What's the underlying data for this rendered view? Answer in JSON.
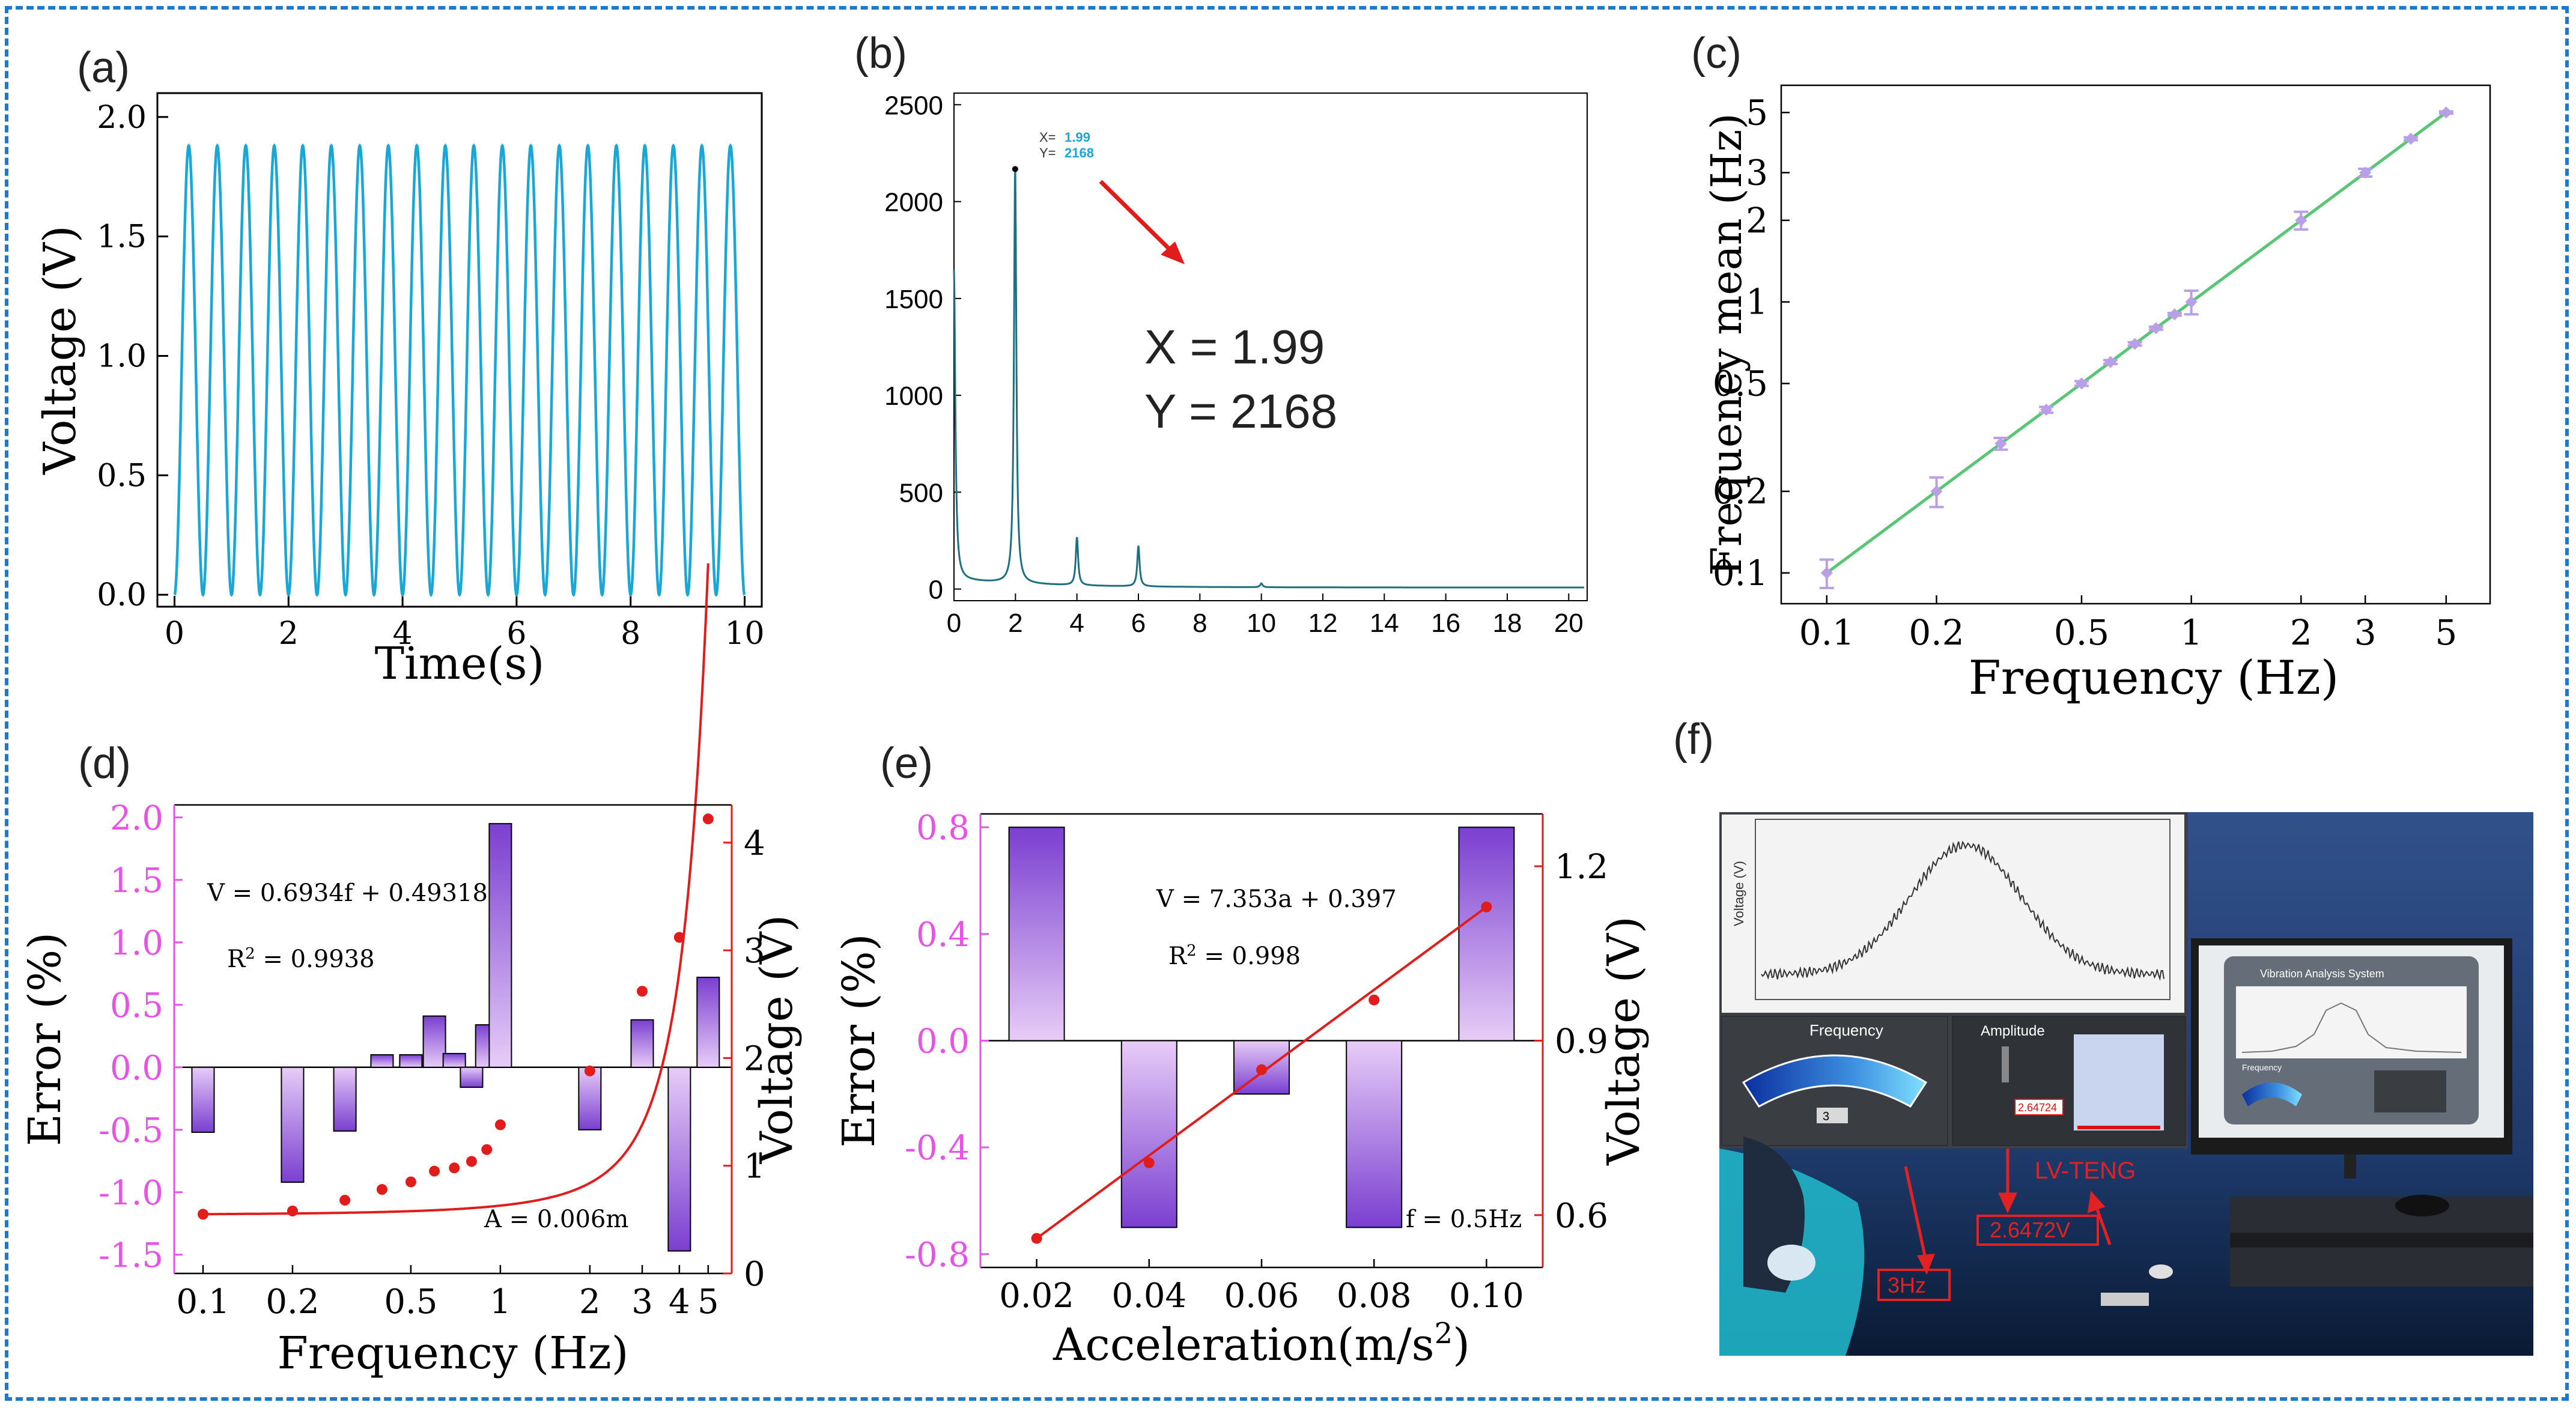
{
  "panels": {
    "a": {
      "label": "(a)"
    },
    "b": {
      "label": "(b)"
    },
    "c": {
      "label": "(c)"
    },
    "d": {
      "label": "(d)"
    },
    "e": {
      "label": "(e)"
    },
    "f": {
      "label": "(f)"
    }
  },
  "colors": {
    "frame": "#1f78c8",
    "cyan": "#1aa7d6",
    "teal": "#1e6f80",
    "green": "#5bc576",
    "lavender": "#b9a0e6",
    "magenta": "#e653e6",
    "red": "#e11c1c",
    "bar_top": "#e7ccf7",
    "bar_dark": "#7a3fd0"
  },
  "chart_data": [
    {
      "id": "a",
      "type": "line",
      "title": "",
      "xlabel": "Time(s)",
      "ylabel": "Voltage (V)",
      "xlim": [
        -0.3,
        10.3
      ],
      "ylim": [
        -0.05,
        2.1
      ],
      "xticks": [
        0,
        2,
        4,
        6,
        8,
        10
      ],
      "yticks": [
        0.0,
        0.5,
        1.0,
        1.5,
        2.0
      ],
      "ytick_labels": [
        "0.0",
        "0.5",
        "1.0",
        "1.5",
        "2.0"
      ],
      "series": [
        {
          "name": "voltage",
          "frequency_hz": 2.0,
          "amplitude_v": 1.88,
          "x_range": [
            0,
            10
          ]
        }
      ]
    },
    {
      "id": "b",
      "type": "line",
      "title": "",
      "xlabel": "",
      "ylabel": "",
      "xlim": [
        0,
        20.6
      ],
      "ylim": [
        -60,
        2560
      ],
      "xticks": [
        0,
        2,
        4,
        6,
        8,
        10,
        12,
        14,
        16,
        18,
        20
      ],
      "yticks": [
        0,
        500,
        1000,
        1500,
        2000,
        2500
      ],
      "datatip": {
        "x_label": "X=",
        "x_value": "1.99",
        "y_label": "Y=",
        "y_value": "2168",
        "x": 1.99,
        "y": 2168
      },
      "annotation_lines": [
        "X = 1.99",
        "Y = 2168"
      ],
      "peaks": [
        {
          "x": 0.0,
          "y": 1600
        },
        {
          "x": 1.99,
          "y": 2168
        },
        {
          "x": 4.0,
          "y": 250
        },
        {
          "x": 6.0,
          "y": 210
        },
        {
          "x": 10.0,
          "y": 20
        }
      ]
    },
    {
      "id": "c",
      "type": "scatter",
      "title": "",
      "xlabel": "Frequency (Hz)",
      "ylabel": "Frequency mean (Hz)",
      "xscale": "log",
      "yscale": "log",
      "xlim": [
        0.075,
        6.6
      ],
      "ylim": [
        0.077,
        6.3
      ],
      "xticks": [
        0.1,
        0.2,
        0.5,
        1,
        2,
        3,
        5
      ],
      "xtick_labels": [
        "0.1",
        "0.2",
        "0.5",
        "1",
        "2",
        "3",
        "5"
      ],
      "yticks": [
        0.1,
        0.2,
        0.5,
        1,
        2,
        3,
        5
      ],
      "ytick_labels": [
        "0.1",
        "0.2",
        "0.5",
        "1",
        "2",
        "3",
        "5"
      ],
      "x": [
        0.1,
        0.2,
        0.3,
        0.4,
        0.5,
        0.6,
        0.7,
        0.8,
        0.9,
        1,
        2,
        3,
        4,
        5
      ],
      "y": [
        0.1,
        0.2,
        0.3,
        0.4,
        0.5,
        0.6,
        0.7,
        0.8,
        0.9,
        1.0,
        2.0,
        3.0,
        4.0,
        5.0
      ],
      "yerr": [
        0.012,
        0.025,
        0.015,
        0.01,
        0.01,
        0.01,
        0.01,
        0.01,
        0.01,
        0.1,
        0.15,
        0.1,
        0.05,
        0.05
      ]
    },
    {
      "id": "d",
      "type": "bar",
      "title": "",
      "xlabel": "Frequency (Hz)",
      "ylabel_left": "Error (%)",
      "ylabel_right": "Voltage (V)",
      "xscale": "log",
      "xlim": [
        0.08,
        6.0
      ],
      "xticks": [
        0.1,
        0.2,
        0.5,
        1,
        2,
        3,
        4,
        5
      ],
      "xtick_labels": [
        "0.1",
        "0.2",
        "0.5",
        "1",
        "2",
        "3",
        "4",
        "5"
      ],
      "ylim_left": [
        -1.65,
        2.1
      ],
      "yticks_left": [
        -1.5,
        -1.0,
        -0.5,
        0.0,
        0.5,
        1.0,
        1.5,
        2.0
      ],
      "ytick_labels_left": [
        "-1.5",
        "-1.0",
        "-0.5",
        "0.0",
        "0.5",
        "1.0",
        "1.5",
        "2.0"
      ],
      "ylim_right": [
        0,
        4.35
      ],
      "yticks_right": [
        0,
        1,
        2,
        3,
        4
      ],
      "categories": [
        0.1,
        0.2,
        0.3,
        0.4,
        0.5,
        0.6,
        0.7,
        0.8,
        0.9,
        1,
        2,
        3,
        4,
        5
      ],
      "error_values": [
        -0.52,
        -0.92,
        -0.51,
        0.1,
        0.1,
        0.41,
        0.11,
        -0.16,
        0.34,
        1.95,
        -0.5,
        0.38,
        -1.47,
        0.72
      ],
      "voltage_x": [
        0.1,
        0.2,
        0.3,
        0.4,
        0.5,
        0.6,
        0.7,
        0.8,
        0.9,
        1,
        2,
        3,
        4,
        5
      ],
      "voltage_y": [
        0.55,
        0.58,
        0.68,
        0.78,
        0.85,
        0.95,
        0.98,
        1.04,
        1.15,
        1.38,
        1.88,
        2.62,
        3.12,
        4.22
      ],
      "equation": "V = 0.6934f + 0.49318",
      "r2_prefix": "R",
      "r2_sup": "2",
      "r2_value": "= 0.9938",
      "amplitude_note": "A = 0.006m"
    },
    {
      "id": "e",
      "type": "bar",
      "title": "",
      "xlabel": "Acceleration(m/s",
      "xlabel_sup": "2",
      "xlabel_end": ")",
      "ylabel_left": "Error (%)",
      "ylabel_right": "Voltage (V)",
      "xlim": [
        0.01,
        0.11
      ],
      "xticks": [
        0.02,
        0.04,
        0.06,
        0.08,
        0.1
      ],
      "xtick_labels": [
        "0.02",
        "0.04",
        "0.06",
        "0.08",
        "0.10"
      ],
      "ylim_left": [
        -0.85,
        0.85
      ],
      "yticks_left": [
        -0.8,
        -0.4,
        0.0,
        0.4,
        0.8
      ],
      "ytick_labels_left": [
        "-0.8",
        "-0.4",
        "0.0",
        "0.4",
        "0.8"
      ],
      "ylim_right": [
        0.51,
        1.29
      ],
      "yticks_right": [
        0.6,
        0.9,
        1.2
      ],
      "ytick_labels_right": [
        "0.6",
        "0.9",
        "1.2"
      ],
      "categories": [
        0.02,
        0.04,
        0.06,
        0.08,
        0.1
      ],
      "error_values": [
        0.8,
        -0.7,
        -0.2,
        -0.7,
        0.8
      ],
      "voltage_x": [
        0.02,
        0.04,
        0.06,
        0.08,
        0.1
      ],
      "voltage_y": [
        0.56,
        0.69,
        0.85,
        0.97,
        1.13
      ],
      "equation": "V = 7.353a + 0.397",
      "r2_prefix": "R",
      "r2_sup": "2",
      "r2_value": "=  0.998",
      "freq_note": "f = 0.5Hz"
    }
  ],
  "photo": {
    "graph_ylabel": "Voltage (V)",
    "freq_gauge_label": "Frequency",
    "freq_gauge_value": "3",
    "amplitude_label": "Amplitude",
    "amplitude_value": "2.64724",
    "monitor_title": "Vibration Analysis System",
    "monitor_small": "Frequency",
    "annotation_teng": "LV-TENG",
    "annotation_voltage": "2.6472V",
    "annotation_freq": "3Hz"
  }
}
